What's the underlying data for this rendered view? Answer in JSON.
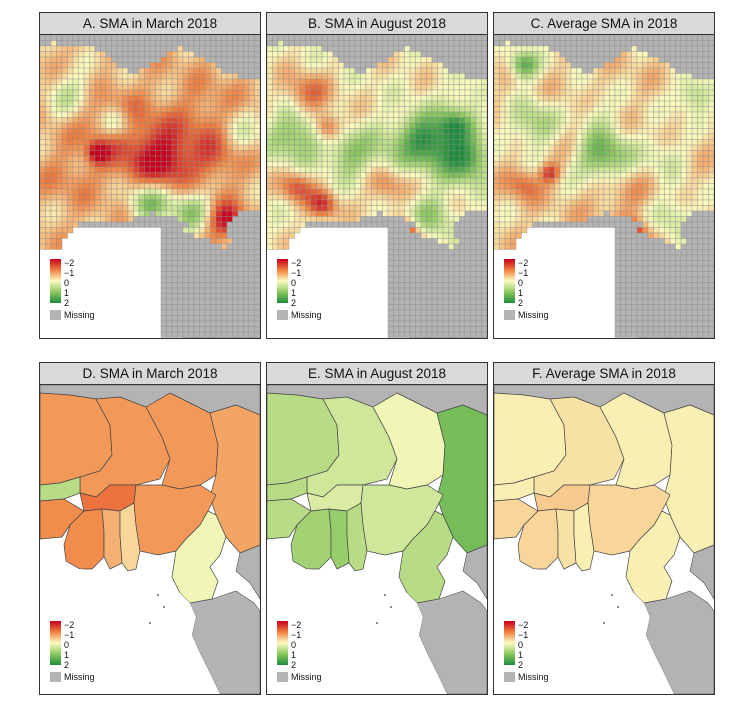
{
  "panels": [
    {
      "id": "A",
      "title": "A. SMA in March 2018",
      "kind": "grid"
    },
    {
      "id": "B",
      "title": "B. SMA in August 2018",
      "kind": "grid"
    },
    {
      "id": "C",
      "title": "C. Average SMA in 2018",
      "kind": "grid"
    },
    {
      "id": "D",
      "title": "D. SMA in March 2018",
      "kind": "region"
    },
    {
      "id": "E",
      "title": "E. SMA in August 2018",
      "kind": "region"
    },
    {
      "id": "F",
      "title": "F. Average SMA in 2018",
      "kind": "region"
    }
  ],
  "legend": {
    "ticks": [
      "−2",
      "−1",
      "0",
      "1",
      "2"
    ],
    "missing_label": "Missing",
    "colors": {
      "neg2": "#c8001e",
      "neg1": "#f08040",
      "zero": "#fbfbc0",
      "pos1": "#8cc860",
      "pos2": "#1e8c3c",
      "missing": "#b3b3b3"
    }
  },
  "region_values": {
    "D": {
      "mauritania": -0.8,
      "mali": -0.8,
      "niger": -0.8,
      "chad": -0.7,
      "senegal": 0.6,
      "burkina": -1.1,
      "guinea": -0.9,
      "ivory_coast": -0.9,
      "ghana": -0.6,
      "togo_benin": -0.3,
      "nigeria": -0.8,
      "cameroon": 0.1
    },
    "E": {
      "mauritania": 0.6,
      "mali": 0.4,
      "niger": 0.1,
      "chad": 1.2,
      "senegal": 0.6,
      "burkina": 0.3,
      "guinea": 0.6,
      "ivory_coast": 0.8,
      "ghana": 0.9,
      "togo_benin": 0.6,
      "nigeria": 0.4,
      "cameroon": 0.6
    },
    "F": {
      "mauritania": -0.1,
      "mali": -0.2,
      "niger": -0.1,
      "chad": -0.1,
      "senegal": -0.1,
      "burkina": -0.4,
      "guinea": -0.3,
      "ivory_coast": -0.3,
      "ghana": -0.2,
      "togo_benin": -0.1,
      "nigeria": -0.3,
      "cameroon": -0.1
    }
  }
}
